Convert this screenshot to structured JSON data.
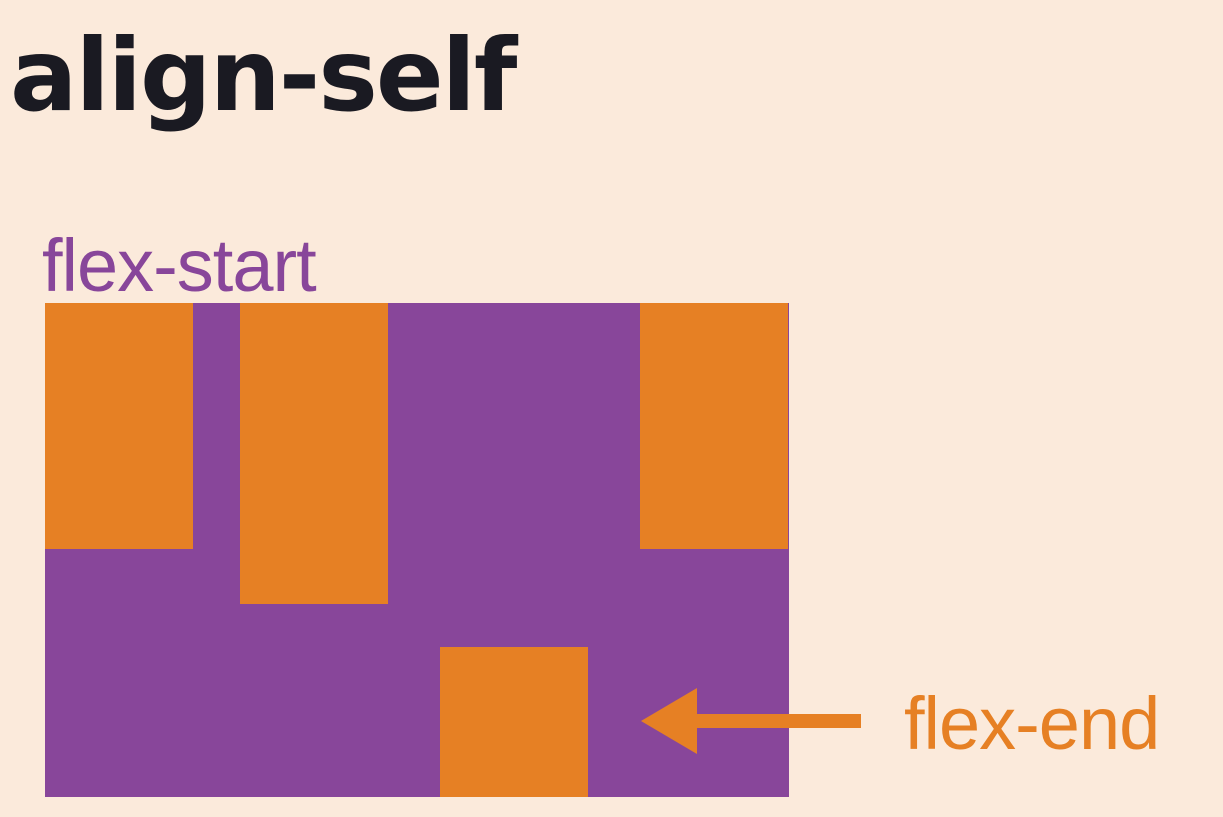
{
  "title": "align-self",
  "labels": {
    "start": "flex-start",
    "end": "flex-end"
  },
  "colors": {
    "background": "#fbeadb",
    "container": "#88469a",
    "item": "#e68024",
    "title": "#1a1a22"
  },
  "diagram": {
    "items": [
      {
        "align": "flex-start"
      },
      {
        "align": "flex-start"
      },
      {
        "align": "flex-end"
      },
      {
        "align": "flex-start"
      }
    ],
    "arrow": {
      "icon": "arrow-left-icon",
      "points_to_item": 3
    }
  }
}
